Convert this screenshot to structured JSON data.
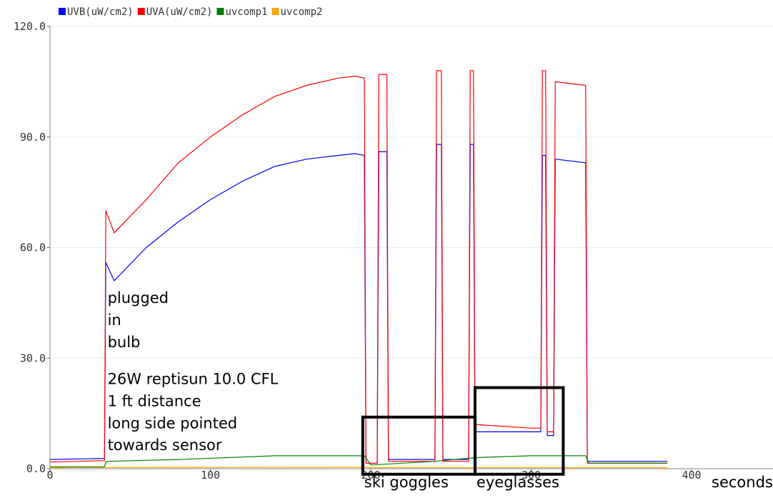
{
  "chart_data": {
    "type": "line",
    "xlim": [
      0,
      450
    ],
    "ylim": [
      0,
      120
    ],
    "xticks": [
      0,
      100,
      200,
      300,
      400
    ],
    "xtick_labels": [
      "0",
      "100",
      "200",
      "300",
      "400"
    ],
    "yticks": [
      0,
      30,
      60,
      90,
      120
    ],
    "ytick_labels": [
      "0.0",
      "30.0",
      "60.0",
      "90.0",
      "120.0"
    ],
    "xlabel": "seconds",
    "ylabel": "",
    "grid": "horizontal",
    "legend_position": "top-left",
    "series": [
      {
        "name": "UVB(uW/cm2)",
        "color": "#0000ff",
        "points": [
          [
            0,
            2.5
          ],
          [
            34,
            2.8
          ],
          [
            34.8,
            56
          ],
          [
            40,
            51
          ],
          [
            60,
            60
          ],
          [
            80,
            67
          ],
          [
            100,
            73
          ],
          [
            120,
            78
          ],
          [
            140,
            82
          ],
          [
            160,
            84
          ],
          [
            180,
            85
          ],
          [
            190,
            85.5
          ],
          [
            196,
            85
          ],
          [
            197,
            1.5
          ],
          [
            204,
            1.5
          ],
          [
            205,
            86
          ],
          [
            210,
            86
          ],
          [
            211,
            2.5
          ],
          [
            240,
            2.5
          ],
          [
            241,
            88
          ],
          [
            244,
            88
          ],
          [
            245,
            2.5
          ],
          [
            261,
            2.5
          ],
          [
            262,
            88
          ],
          [
            264,
            88
          ],
          [
            265,
            10
          ],
          [
            300,
            10
          ],
          [
            306,
            10
          ],
          [
            307,
            85
          ],
          [
            309,
            85
          ],
          [
            310,
            9
          ],
          [
            314,
            9
          ],
          [
            315,
            84
          ],
          [
            334,
            83
          ],
          [
            335,
            2
          ],
          [
            385,
            2
          ]
        ]
      },
      {
        "name": "UVA(uW/cm2)",
        "color": "#ff0000",
        "points": [
          [
            0,
            1.8
          ],
          [
            34,
            2.2
          ],
          [
            34.8,
            70
          ],
          [
            40,
            64
          ],
          [
            60,
            73
          ],
          [
            80,
            83
          ],
          [
            100,
            90
          ],
          [
            120,
            96
          ],
          [
            140,
            101
          ],
          [
            160,
            104
          ],
          [
            180,
            106
          ],
          [
            190,
            106.5
          ],
          [
            196,
            106
          ],
          [
            197,
            1.5
          ],
          [
            204,
            1.5
          ],
          [
            205,
            107
          ],
          [
            210,
            107
          ],
          [
            211,
            2
          ],
          [
            240,
            2
          ],
          [
            241,
            108
          ],
          [
            244,
            108
          ],
          [
            245,
            2
          ],
          [
            261,
            2
          ],
          [
            262,
            108
          ],
          [
            264,
            108
          ],
          [
            265,
            12
          ],
          [
            300,
            11
          ],
          [
            306,
            11
          ],
          [
            307,
            108
          ],
          [
            309,
            108
          ],
          [
            310,
            10
          ],
          [
            314,
            10
          ],
          [
            315,
            105
          ],
          [
            334,
            104
          ],
          [
            335,
            1.5
          ],
          [
            385,
            1.5
          ]
        ]
      },
      {
        "name": "uvcomp1",
        "color": "#008000",
        "points": [
          [
            0,
            0.5
          ],
          [
            34,
            0.5
          ],
          [
            35,
            2
          ],
          [
            80,
            2.5
          ],
          [
            140,
            3.5
          ],
          [
            196,
            3.5
          ],
          [
            200,
            1
          ],
          [
            240,
            2
          ],
          [
            265,
            3
          ],
          [
            300,
            3.5
          ],
          [
            334,
            3.5
          ],
          [
            336,
            1.5
          ],
          [
            385,
            1.5
          ]
        ]
      },
      {
        "name": "uvcomp2",
        "color": "#ffa500",
        "points": [
          [
            0,
            0.3
          ],
          [
            196,
            0.4
          ],
          [
            200,
            0.3
          ],
          [
            385,
            0.3
          ]
        ]
      }
    ],
    "annotations": [
      {
        "text": "plugged",
        "x": 35,
        "y": 45
      },
      {
        "text": "in",
        "x": 35,
        "y": 39
      },
      {
        "text": "bulb",
        "x": 35,
        "y": 33
      },
      {
        "text": "26W reptisun 10.0 CFL",
        "x": 35,
        "y": 23
      },
      {
        "text": "1 ft distance",
        "x": 35,
        "y": 17
      },
      {
        "text": "long side pointed",
        "x": 35,
        "y": 11
      },
      {
        "text": "towards sensor",
        "x": 35,
        "y": 5
      },
      {
        "text": "ski goggles",
        "x": 195,
        "y": -5
      },
      {
        "text": "eyeglasses",
        "x": 265,
        "y": -5
      }
    ],
    "boxes": [
      {
        "name": "ski-goggles-box",
        "x0": 195,
        "x1": 265,
        "y0": -1.5,
        "y1": 14
      },
      {
        "name": "eyeglasses-box",
        "x0": 265,
        "x1": 320,
        "y0": -1.5,
        "y1": 22
      }
    ]
  }
}
